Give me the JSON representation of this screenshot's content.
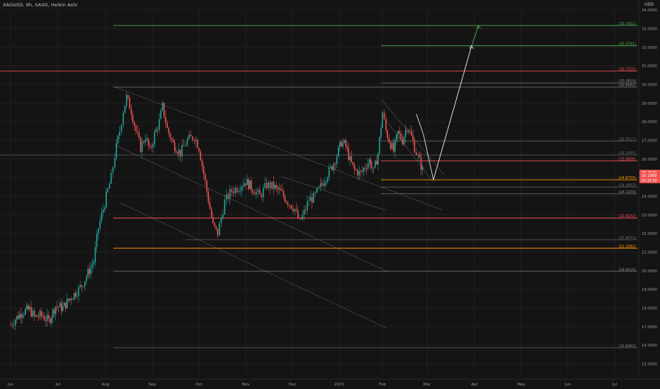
{
  "header": {
    "title": "XAGUSD, 9h, SAXO, Heikin Ashi",
    "currency": "USD"
  },
  "chart_data": {
    "type": "candlestick",
    "title": "XAGUSD, 9h, SAXO, Heikin Ashi",
    "ylim": [
      14.4,
      34.0
    ],
    "y_tick_labels": [
      "15.0000",
      "16.0000",
      "17.0000",
      "18.0000",
      "19.0000",
      "20.0000",
      "21.0000",
      "22.0000",
      "23.0000",
      "24.0000",
      "25.0000",
      "26.0000",
      "27.0000",
      "28.0000",
      "29.0000",
      "30.0000",
      "31.0000",
      "32.0000",
      "33.0000",
      "34.0000"
    ],
    "x_tick_labels": [
      "Jun",
      "Jul",
      "Aug",
      "Sep",
      "Oct",
      "Nov",
      "Dec",
      "2021",
      "Feb",
      "Mar",
      "Apr",
      "May",
      "Jun",
      "Jul"
    ],
    "colors": {
      "up": "#26a69a",
      "down": "#ef5350",
      "bg": "#141414",
      "grid": "#1f1f1f"
    },
    "levels": [
      {
        "value": 33.1621,
        "label": "(33.1621)",
        "color": "#4caf50",
        "start": "Aug"
      },
      {
        "value": 32.0761,
        "label": "(32.0761)",
        "color": "#4caf50",
        "start": "Feb"
      },
      {
        "value": 30.7229,
        "label": "(30.7229)",
        "color": "#ef5350",
        "start": "Jun"
      },
      {
        "value": 30.0819,
        "label": "(30.0819)",
        "color": "#8a8a8a",
        "start": "Feb"
      },
      {
        "value": 29.8562,
        "label": "(29.8562)",
        "color": "#8a8a8a",
        "start": "Aug"
      },
      {
        "value": 26.9517,
        "label": "(26.9517)",
        "color": "#707070",
        "start": "Feb"
      },
      {
        "value": 26.2095,
        "label": "(26.2095)",
        "color": "#707070",
        "start": "Jun"
      },
      {
        "value": 25.8896,
        "label": "(25.8896)",
        "color": "#ef5350",
        "start": "Feb"
      },
      {
        "value": 24.8755,
        "label": "(24.8755)",
        "color": "#ff9800",
        "start": "Feb"
      },
      {
        "value": 24.4863,
        "label": "(24.4863)",
        "color": "#707070",
        "start": "Feb"
      },
      {
        "value": 24.1259,
        "label": "(24.1259)",
        "color": "#8a8a8a",
        "start": "Feb"
      },
      {
        "value": 22.8232,
        "label": "(22.8232)",
        "color": "#ef5350",
        "start": "Aug"
      },
      {
        "value": 21.6573,
        "label": "(21.6573)",
        "color": "#707070",
        "start": "Sep"
      },
      {
        "value": 21.1992,
        "label": "(21.1992)",
        "color": "#ff9800",
        "start": "Aug"
      },
      {
        "value": 19.9525,
        "label": "(19.9525)",
        "color": "#8a8a8a",
        "start": "Aug"
      },
      {
        "value": 15.8482,
        "label": "(15.8482)",
        "color": "#8a8a8a",
        "start": "Aug"
      }
    ],
    "price_badges": [
      {
        "label": "25.2640",
        "value": 25.264,
        "color": "#ef5350"
      },
      {
        "label": "25.1069",
        "value": 25.1069,
        "sub": "03:15:50",
        "color": "#ef5350"
      }
    ],
    "series": [
      {
        "name": "",
        "points": [
          [
            0,
            17.1
          ],
          [
            0.1,
            17.4
          ],
          [
            0.25,
            17.8
          ],
          [
            0.4,
            17.9
          ],
          [
            0.5,
            17.5
          ],
          [
            0.65,
            17.6
          ],
          [
            0.8,
            17.3
          ],
          [
            0.95,
            18.1
          ],
          [
            1.1,
            18.0
          ],
          [
            1.25,
            18.5
          ],
          [
            1.4,
            18.9
          ],
          [
            1.5,
            19.2
          ],
          [
            1.6,
            19.7
          ],
          [
            1.75,
            20.5
          ],
          [
            1.85,
            22.3
          ],
          [
            1.95,
            23.3
          ],
          [
            2.05,
            24.3
          ],
          [
            2.12,
            25.0
          ],
          [
            2.2,
            26.2
          ],
          [
            2.3,
            27.5
          ],
          [
            2.38,
            28.6
          ],
          [
            2.45,
            29.3
          ],
          [
            2.55,
            28.6
          ],
          [
            2.65,
            27.5
          ],
          [
            2.75,
            26.6
          ],
          [
            2.85,
            27.2
          ],
          [
            2.95,
            26.4
          ],
          [
            3.05,
            27.3
          ],
          [
            3.15,
            28.0
          ],
          [
            3.22,
            28.8
          ],
          [
            3.32,
            27.6
          ],
          [
            3.45,
            26.8
          ],
          [
            3.6,
            26.3
          ],
          [
            3.75,
            27.0
          ],
          [
            3.9,
            27.2
          ],
          [
            4.0,
            26.6
          ],
          [
            4.1,
            25.2
          ],
          [
            4.2,
            23.8
          ],
          [
            4.3,
            22.4
          ],
          [
            4.4,
            22.0
          ],
          [
            4.55,
            23.7
          ],
          [
            4.7,
            24.3
          ],
          [
            4.85,
            24.5
          ],
          [
            5.0,
            24.8
          ],
          [
            5.15,
            24.4
          ],
          [
            5.3,
            24.0
          ],
          [
            5.45,
            24.6
          ],
          [
            5.6,
            24.5
          ],
          [
            5.75,
            24.2
          ],
          [
            5.9,
            23.7
          ],
          [
            6.05,
            23.3
          ],
          [
            6.15,
            22.6
          ],
          [
            6.25,
            23.1
          ],
          [
            6.35,
            23.8
          ],
          [
            6.45,
            23.9
          ],
          [
            6.6,
            24.5
          ],
          [
            6.75,
            25.2
          ],
          [
            6.85,
            25.6
          ],
          [
            6.95,
            26.2
          ],
          [
            7.05,
            26.9
          ],
          [
            7.15,
            26.7
          ],
          [
            7.25,
            25.9
          ],
          [
            7.35,
            25.4
          ],
          [
            7.5,
            25.2
          ],
          [
            7.6,
            25.6
          ],
          [
            7.7,
            25.9
          ],
          [
            7.8,
            25.3
          ],
          [
            7.9,
            26.3
          ],
          [
            8.0,
            28.5
          ],
          [
            8.08,
            27.5
          ],
          [
            8.15,
            27.0
          ],
          [
            8.25,
            26.4
          ],
          [
            8.35,
            27.4
          ],
          [
            8.45,
            27.0
          ],
          [
            8.55,
            27.8
          ],
          [
            8.65,
            27.2
          ],
          [
            8.72,
            26.6
          ],
          [
            8.8,
            26.1
          ],
          [
            8.9,
            25.4
          ],
          [
            8.95,
            25.1
          ]
        ]
      }
    ],
    "projection": {
      "from": 24.8755,
      "to": [
        32.0761,
        33.1621
      ]
    }
  }
}
